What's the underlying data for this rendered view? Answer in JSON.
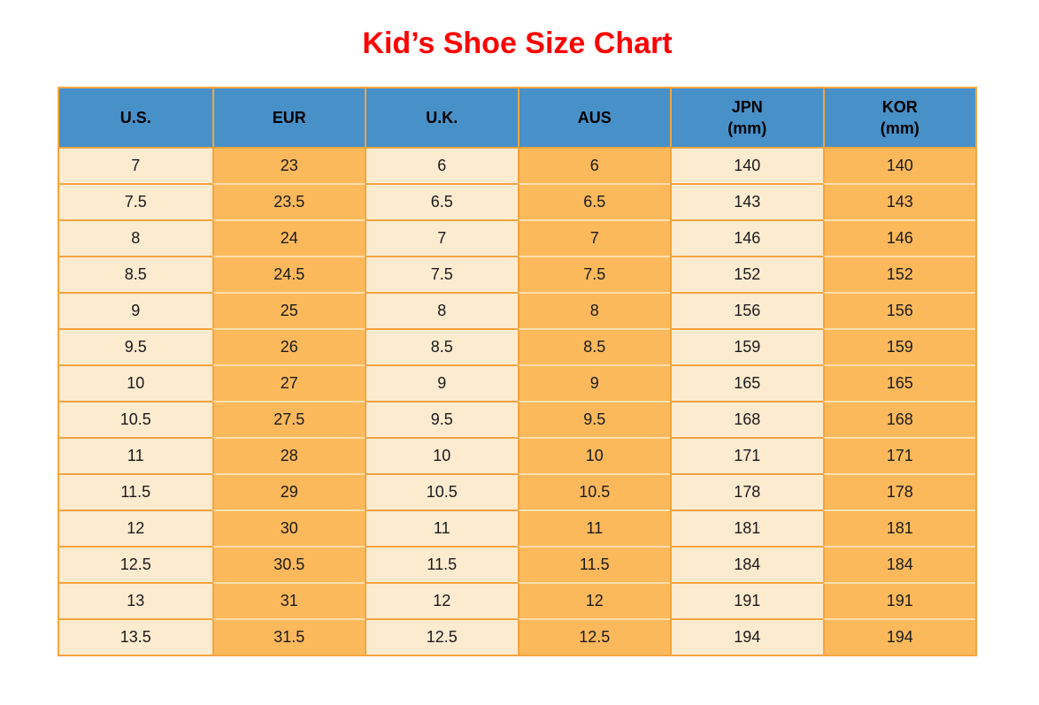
{
  "title": "Kid’s Shoe Size Chart",
  "colors": {
    "header_blue": "#4890C8",
    "cell_light": "#FDEBD0",
    "cell_orange": "#FCB95C",
    "border_orange": "#F5A43E",
    "separator_light": "#FDDFAE",
    "title_red": "#FF0000",
    "text_color": "#1a1a1a"
  },
  "chart_data": {
    "type": "table",
    "title": "Kid’s Shoe Size Chart",
    "columns": [
      {
        "label": "U.S.",
        "sub": ""
      },
      {
        "label": "EUR",
        "sub": ""
      },
      {
        "label": "U.K.",
        "sub": ""
      },
      {
        "label": "AUS",
        "sub": ""
      },
      {
        "label": "JPN",
        "sub": "(mm)"
      },
      {
        "label": "KOR",
        "sub": "(mm)"
      }
    ],
    "rows": [
      [
        "7",
        "23",
        "6",
        "6",
        "140",
        "140"
      ],
      [
        "7.5",
        "23.5",
        "6.5",
        "6.5",
        "143",
        "143"
      ],
      [
        "8",
        "24",
        "7",
        "7",
        "146",
        "146"
      ],
      [
        "8.5",
        "24.5",
        "7.5",
        "7.5",
        "152",
        "152"
      ],
      [
        "9",
        "25",
        "8",
        "8",
        "156",
        "156"
      ],
      [
        "9.5",
        "26",
        "8.5",
        "8.5",
        "159",
        "159"
      ],
      [
        "10",
        "27",
        "9",
        "9",
        "165",
        "165"
      ],
      [
        "10.5",
        "27.5",
        "9.5",
        "9.5",
        "168",
        "168"
      ],
      [
        "11",
        "28",
        "10",
        "10",
        "171",
        "171"
      ],
      [
        "11.5",
        "29",
        "10.5",
        "10.5",
        "178",
        "178"
      ],
      [
        "12",
        "30",
        "11",
        "11",
        "181",
        "181"
      ],
      [
        "12.5",
        "30.5",
        "11.5",
        "11.5",
        "184",
        "184"
      ],
      [
        "13",
        "31",
        "12",
        "12",
        "191",
        "191"
      ],
      [
        "13.5",
        "31.5",
        "12.5",
        "12.5",
        "194",
        "194"
      ]
    ]
  }
}
